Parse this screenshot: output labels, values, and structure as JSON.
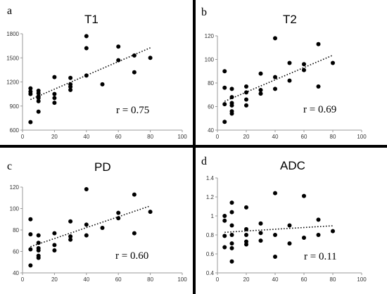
{
  "chart_data": [
    {
      "type": "scatter",
      "panel_label": "a",
      "title": "T1",
      "annotation": "r = 0.75",
      "xlim": [
        0,
        100
      ],
      "ylim": [
        600,
        1800
      ],
      "xticks": [
        0,
        20,
        40,
        60,
        80,
        100
      ],
      "yticks": [
        600,
        900,
        1200,
        1500,
        1800
      ],
      "trendline": "dotted linear",
      "points": [
        [
          5,
          700
        ],
        [
          5,
          1050
        ],
        [
          5,
          1080
        ],
        [
          5,
          1120
        ],
        [
          10,
          830
        ],
        [
          10,
          960
        ],
        [
          10,
          1000
        ],
        [
          10,
          1020
        ],
        [
          10,
          1060
        ],
        [
          10,
          1090
        ],
        [
          20,
          940
        ],
        [
          20,
          1000
        ],
        [
          20,
          1050
        ],
        [
          20,
          1260
        ],
        [
          30,
          1100
        ],
        [
          30,
          1140
        ],
        [
          30,
          1170
        ],
        [
          30,
          1250
        ],
        [
          40,
          1280
        ],
        [
          40,
          1620
        ],
        [
          40,
          1770
        ],
        [
          50,
          1170
        ],
        [
          60,
          1470
        ],
        [
          60,
          1640
        ],
        [
          70,
          1320
        ],
        [
          70,
          1530
        ],
        [
          80,
          1500
        ]
      ]
    },
    {
      "type": "scatter",
      "panel_label": "b",
      "title": "T2",
      "annotation": "r = 0.69",
      "xlim": [
        0,
        100
      ],
      "ylim": [
        40,
        120
      ],
      "xticks": [
        0,
        20,
        40,
        60,
        80,
        100
      ],
      "yticks": [
        40,
        60,
        80,
        100,
        120
      ],
      "trendline": "dotted linear",
      "points": [
        [
          5,
          47
        ],
        [
          5,
          62
        ],
        [
          5,
          76
        ],
        [
          5,
          90
        ],
        [
          10,
          54
        ],
        [
          10,
          56
        ],
        [
          10,
          61
        ],
        [
          10,
          63
        ],
        [
          10,
          68
        ],
        [
          10,
          75
        ],
        [
          20,
          61
        ],
        [
          20,
          66
        ],
        [
          20,
          72
        ],
        [
          20,
          77
        ],
        [
          30,
          71
        ],
        [
          30,
          74
        ],
        [
          30,
          88
        ],
        [
          40,
          75
        ],
        [
          40,
          85
        ],
        [
          40,
          118
        ],
        [
          50,
          82
        ],
        [
          50,
          97
        ],
        [
          60,
          91
        ],
        [
          60,
          96
        ],
        [
          70,
          77
        ],
        [
          70,
          113
        ],
        [
          80,
          97
        ]
      ]
    },
    {
      "type": "scatter",
      "panel_label": "c",
      "title": "PD",
      "annotation": "r = 0.60",
      "xlim": [
        0,
        100
      ],
      "ylim": [
        40,
        120
      ],
      "xticks": [
        0,
        20,
        40,
        60,
        80,
        100
      ],
      "yticks": [
        40,
        60,
        80,
        100,
        120
      ],
      "trendline": "dotted linear",
      "points": [
        [
          5,
          47
        ],
        [
          5,
          62
        ],
        [
          5,
          76
        ],
        [
          5,
          90
        ],
        [
          10,
          54
        ],
        [
          10,
          56
        ],
        [
          10,
          61
        ],
        [
          10,
          63
        ],
        [
          10,
          68
        ],
        [
          10,
          75
        ],
        [
          20,
          61
        ],
        [
          20,
          66
        ],
        [
          20,
          77
        ],
        [
          30,
          71
        ],
        [
          30,
          74
        ],
        [
          30,
          88
        ],
        [
          40,
          75
        ],
        [
          40,
          85
        ],
        [
          40,
          118
        ],
        [
          50,
          82
        ],
        [
          60,
          91
        ],
        [
          60,
          96
        ],
        [
          70,
          77
        ],
        [
          70,
          113
        ],
        [
          80,
          97
        ]
      ]
    },
    {
      "type": "scatter",
      "panel_label": "d",
      "title": "ADC",
      "annotation": "r = 0.11",
      "xlim": [
        0,
        100
      ],
      "ylim": [
        0.4,
        1.4
      ],
      "xticks": [
        0,
        20,
        40,
        60,
        80,
        100
      ],
      "yticks": [
        0.4,
        0.6,
        0.8,
        1.0,
        1.2,
        1.4
      ],
      "ytick_labels": [
        "0.4",
        "0.6",
        "0.8",
        "1",
        "1.2",
        "1.4"
      ],
      "trendline": "dotted linear",
      "points": [
        [
          5,
          0.67
        ],
        [
          5,
          0.79
        ],
        [
          5,
          0.95
        ],
        [
          5,
          1.0
        ],
        [
          10,
          0.52
        ],
        [
          10,
          0.66
        ],
        [
          10,
          0.71
        ],
        [
          10,
          0.8
        ],
        [
          10,
          0.9
        ],
        [
          10,
          1.04
        ],
        [
          10,
          1.14
        ],
        [
          20,
          0.7
        ],
        [
          20,
          0.73
        ],
        [
          20,
          0.8
        ],
        [
          20,
          0.86
        ],
        [
          20,
          1.09
        ],
        [
          30,
          0.74
        ],
        [
          30,
          0.82
        ],
        [
          30,
          0.92
        ],
        [
          40,
          0.57
        ],
        [
          40,
          0.8
        ],
        [
          40,
          1.24
        ],
        [
          50,
          0.71
        ],
        [
          50,
          0.9
        ],
        [
          60,
          0.77
        ],
        [
          60,
          1.21
        ],
        [
          70,
          0.8
        ],
        [
          70,
          0.96
        ],
        [
          80,
          0.84
        ]
      ]
    }
  ]
}
